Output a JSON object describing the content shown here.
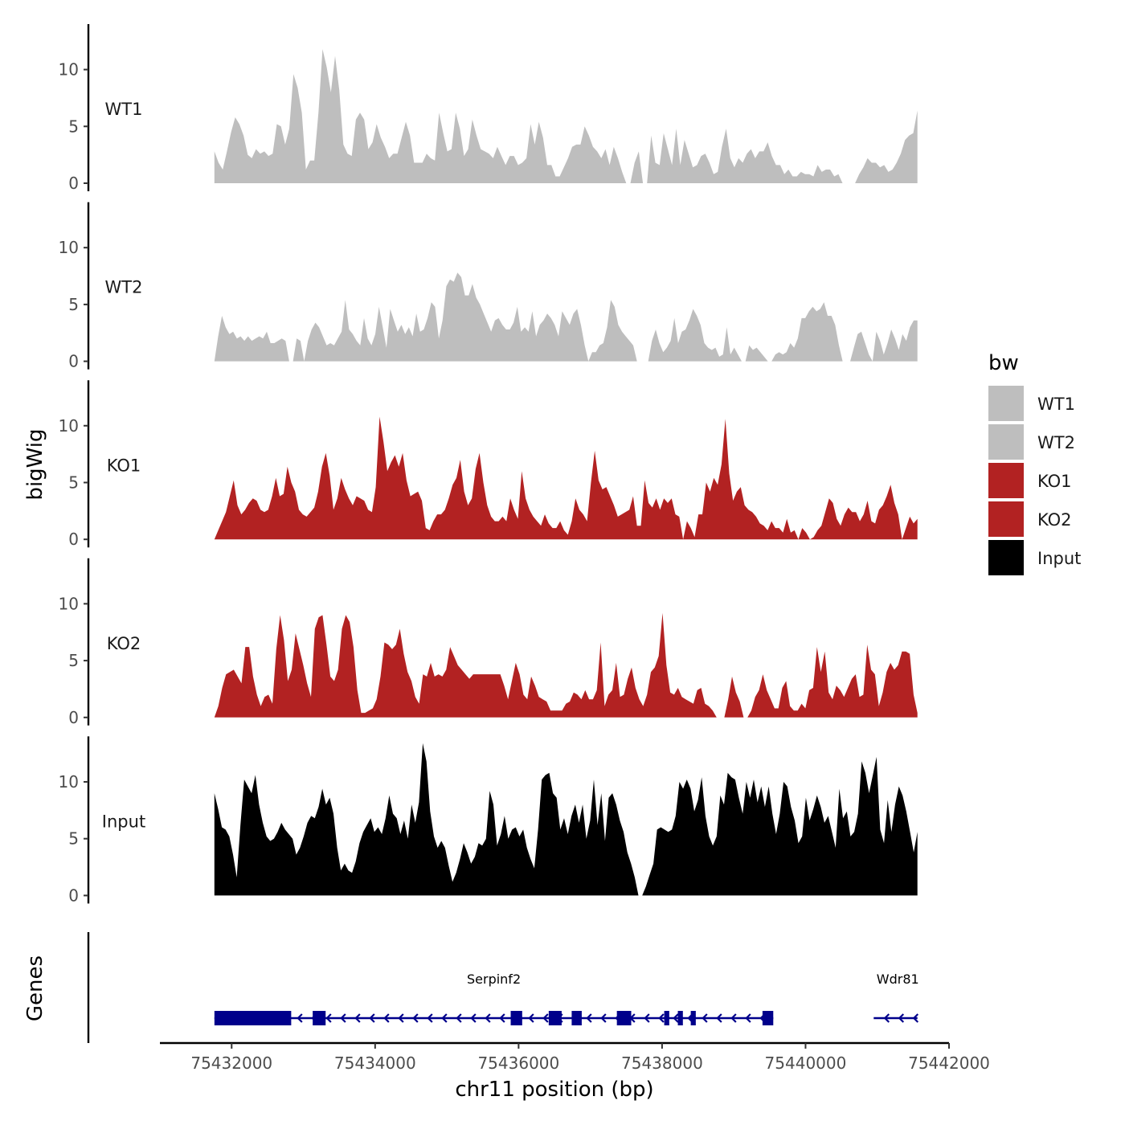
{
  "chart_data": {
    "type": "area",
    "layout": "stacked genome-browser tracks",
    "ylabel": "bigWig",
    "xlabel": "chr11 position (bp)",
    "genes_panel_label": "Genes",
    "xlim": [
      75431000,
      75442000
    ],
    "data_range": [
      75431760,
      75441560
    ],
    "x_ticks": [
      75432000,
      75434000,
      75436000,
      75438000,
      75440000,
      75442000
    ],
    "x_tick_labels": [
      "75432000",
      "75434000",
      "75436000",
      "75438000",
      "75440000",
      "75442000"
    ],
    "ylim": [
      0,
      14
    ],
    "y_ticks": [
      0,
      5,
      10
    ],
    "y_tick_labels": [
      "0",
      "5",
      "10"
    ],
    "legend": {
      "title": "bw",
      "entries": [
        {
          "label": "WT1",
          "color": "#bebebe"
        },
        {
          "label": "WT2",
          "color": "#bebebe"
        },
        {
          "label": "KO1",
          "color": "#b22222"
        },
        {
          "label": "KO2",
          "color": "#b22222"
        },
        {
          "label": "Input",
          "color": "#000000"
        }
      ]
    },
    "series": [
      {
        "name": "WT1",
        "color": "#bebebe",
        "values": [
          2.8,
          1.8,
          1.2,
          2.8,
          4.5,
          5.8,
          5.2,
          4.2,
          2.5,
          2.2,
          3.0,
          2.6,
          2.8,
          2.4,
          2.6,
          5.2,
          5.0,
          3.4,
          4.8,
          9.6,
          8.4,
          6.2,
          1.2,
          2.0,
          2.0,
          6.2,
          11.8,
          10.2,
          8.0,
          11.2,
          8.2,
          3.4,
          2.6,
          2.4,
          5.6,
          6.2,
          5.6,
          3.0,
          3.6,
          5.2,
          4.0,
          3.2,
          2.2,
          2.6,
          2.6,
          4.0,
          5.4,
          4.2,
          1.8,
          1.8,
          1.8,
          2.6,
          2.2,
          2.0,
          6.2,
          4.4,
          2.8,
          3.0,
          6.2,
          4.8,
          2.4,
          3.0,
          5.6,
          4.2,
          3.0,
          2.8,
          2.6,
          2.2,
          3.2,
          2.4,
          1.6,
          2.4,
          2.4,
          1.6,
          1.8,
          2.2,
          5.2,
          3.4,
          5.4,
          4.0,
          1.6,
          1.6,
          0.6,
          0.6,
          1.4,
          2.2,
          3.2,
          3.4,
          3.4,
          5.0,
          4.2,
          3.2,
          2.8,
          2.2,
          3.0,
          1.6,
          3.2,
          2.2,
          1.0,
          0.0,
          0.0,
          1.8,
          2.8,
          0.0,
          0.0,
          4.2,
          1.8,
          1.6,
          4.4,
          3.0,
          1.6,
          4.8,
          1.6,
          3.8,
          2.6,
          1.4,
          1.6,
          2.4,
          2.6,
          1.8,
          0.8,
          1.0,
          3.2,
          4.8,
          2.2,
          1.4,
          2.2,
          1.8,
          2.6,
          3.0,
          2.2,
          2.8,
          2.8,
          3.6,
          2.4,
          1.6,
          1.6,
          0.8,
          1.2,
          0.6,
          0.6,
          1.0,
          0.8,
          0.8,
          0.6,
          1.6,
          1.0,
          1.2,
          1.2,
          0.6,
          0.8,
          0.0,
          0.0,
          0.0,
          0.0,
          0.8,
          1.4,
          2.2,
          1.8,
          1.8,
          1.4,
          1.6,
          1.0,
          1.2,
          1.8,
          2.6,
          3.8,
          4.2,
          4.4,
          6.4
        ]
      },
      {
        "name": "WT2",
        "color": "#bebebe",
        "values": [
          0.0,
          2.2,
          4.0,
          3.0,
          2.4,
          2.6,
          2.0,
          2.2,
          1.8,
          2.2,
          1.8,
          2.0,
          2.2,
          2.0,
          2.6,
          1.6,
          1.6,
          1.8,
          2.0,
          1.8,
          0.0,
          0.0,
          2.0,
          1.8,
          0.0,
          1.8,
          2.8,
          3.4,
          3.0,
          2.2,
          1.4,
          1.6,
          1.4,
          2.0,
          2.6,
          5.4,
          2.8,
          2.4,
          1.8,
          1.4,
          3.8,
          2.0,
          1.4,
          2.4,
          4.8,
          3.0,
          1.2,
          4.6,
          3.6,
          2.6,
          3.2,
          2.4,
          3.0,
          2.2,
          4.2,
          2.6,
          2.8,
          3.8,
          5.2,
          4.8,
          2.0,
          3.6,
          6.6,
          7.2,
          7.0,
          7.8,
          7.4,
          5.8,
          5.8,
          6.8,
          5.6,
          5.0,
          4.2,
          3.4,
          2.6,
          3.6,
          3.8,
          3.2,
          2.8,
          2.8,
          3.4,
          4.8,
          2.6,
          3.0,
          2.6,
          4.4,
          2.2,
          3.2,
          3.6,
          4.2,
          3.8,
          3.2,
          2.2,
          4.4,
          3.8,
          3.2,
          4.2,
          4.6,
          3.2,
          1.4,
          0.0,
          0.8,
          0.8,
          1.4,
          1.6,
          3.0,
          5.4,
          4.8,
          3.2,
          2.6,
          2.2,
          1.8,
          1.4,
          0.0,
          0.0,
          0.0,
          0.0,
          1.8,
          2.8,
          1.6,
          0.8,
          1.2,
          1.8,
          3.8,
          1.6,
          2.6,
          2.8,
          3.6,
          4.6,
          4.0,
          3.2,
          1.6,
          1.2,
          1.0,
          1.2,
          0.4,
          0.6,
          3.0,
          0.6,
          1.2,
          0.6,
          0.0,
          0.0,
          1.4,
          1.0,
          1.2,
          0.8,
          0.4,
          0.0,
          0.0,
          0.6,
          0.8,
          0.6,
          0.8,
          1.6,
          1.2,
          2.0,
          3.8,
          3.8,
          4.4,
          4.8,
          4.4,
          4.6,
          5.2,
          4.0,
          4.0,
          3.2,
          1.4,
          0.0,
          0.0,
          0.0,
          1.2,
          2.4,
          2.6,
          1.6,
          0.6,
          0.0,
          2.6,
          1.8,
          0.6,
          1.6,
          2.8,
          2.0,
          1.0,
          2.4,
          1.8,
          3.0,
          3.6,
          3.6
        ]
      },
      {
        "name": "KO1",
        "color": "#b22222",
        "values": [
          0.0,
          0.8,
          1.6,
          2.4,
          3.8,
          5.2,
          3.0,
          2.2,
          2.6,
          3.2,
          3.6,
          3.4,
          2.6,
          2.4,
          2.6,
          3.8,
          5.4,
          3.8,
          4.0,
          6.4,
          5.0,
          4.2,
          2.6,
          2.2,
          2.0,
          2.4,
          2.8,
          4.2,
          6.4,
          7.6,
          5.6,
          2.6,
          3.6,
          5.4,
          4.4,
          3.6,
          3.0,
          3.8,
          3.6,
          3.4,
          2.6,
          2.4,
          4.6,
          10.8,
          8.6,
          6.0,
          6.8,
          7.4,
          6.4,
          7.6,
          5.2,
          3.8,
          4.0,
          4.2,
          3.4,
          1.0,
          0.8,
          1.6,
          2.2,
          2.2,
          2.6,
          3.6,
          4.8,
          5.4,
          7.0,
          4.2,
          3.0,
          3.6,
          6.2,
          7.6,
          5.0,
          3.0,
          2.0,
          1.6,
          1.6,
          2.0,
          1.6,
          3.6,
          2.6,
          1.8,
          6.0,
          3.6,
          2.6,
          2.0,
          1.6,
          1.2,
          2.2,
          1.4,
          1.0,
          1.0,
          1.6,
          0.8,
          0.4,
          1.6,
          3.6,
          2.6,
          2.2,
          1.6,
          5.0,
          7.8,
          5.2,
          4.4,
          4.6,
          3.8,
          3.0,
          2.0,
          2.2,
          2.4,
          2.6,
          3.8,
          1.2,
          1.2,
          5.2,
          3.2,
          2.8,
          3.6,
          2.6,
          3.6,
          3.2,
          3.6,
          2.2,
          2.0,
          0.0,
          1.6,
          1.0,
          0.2,
          2.2,
          2.2,
          5.0,
          4.2,
          5.4,
          4.8,
          6.6,
          10.6,
          5.8,
          3.4,
          4.2,
          4.6,
          3.0,
          2.6,
          2.4,
          2.0,
          1.4,
          1.2,
          0.8,
          1.6,
          1.0,
          1.0,
          0.6,
          1.8,
          0.6,
          0.8,
          0.0,
          1.0,
          0.6,
          0.0,
          0.2,
          0.8,
          1.2,
          2.4,
          3.6,
          3.2,
          1.8,
          1.2,
          2.2,
          2.8,
          2.4,
          2.4,
          1.6,
          2.2,
          3.4,
          1.6,
          1.4,
          2.6,
          3.0,
          3.8,
          4.8,
          3.2,
          2.2,
          0.0,
          1.0,
          2.0,
          1.4,
          1.8
        ]
      },
      {
        "name": "KO2",
        "color": "#b22222",
        "values": [
          0.0,
          1.0,
          2.6,
          3.8,
          4.0,
          4.2,
          3.6,
          3.0,
          6.2,
          6.2,
          3.6,
          2.0,
          1.0,
          1.8,
          2.0,
          1.2,
          6.0,
          9.0,
          6.8,
          3.2,
          4.2,
          7.4,
          6.0,
          4.6,
          3.0,
          1.8,
          7.8,
          8.8,
          9.0,
          6.4,
          3.6,
          3.2,
          4.2,
          7.8,
          9.0,
          8.4,
          6.2,
          2.4,
          0.4,
          0.4,
          0.6,
          0.8,
          1.6,
          3.6,
          6.6,
          6.4,
          6.0,
          6.4,
          7.8,
          5.6,
          4.0,
          3.2,
          1.8,
          1.2,
          3.8,
          3.6,
          4.8,
          3.6,
          3.8,
          3.6,
          4.2,
          6.2,
          5.4,
          4.6,
          4.2,
          3.8,
          3.4,
          3.8,
          3.8,
          3.8,
          3.8,
          3.8,
          3.8,
          3.8,
          3.8,
          2.8,
          1.6,
          3.2,
          4.8,
          3.8,
          2.0,
          1.6,
          3.6,
          2.8,
          1.8,
          1.6,
          1.4,
          0.6,
          0.6,
          0.6,
          0.6,
          1.2,
          1.4,
          2.2,
          2.0,
          1.6,
          2.4,
          1.6,
          1.6,
          2.4,
          6.6,
          1.0,
          2.0,
          2.4,
          4.8,
          1.8,
          2.0,
          3.4,
          4.4,
          2.6,
          1.6,
          1.0,
          2.0,
          4.0,
          4.4,
          5.4,
          9.2,
          4.6,
          2.2,
          2.0,
          2.6,
          1.8,
          1.6,
          1.4,
          1.2,
          2.4,
          2.6,
          1.2,
          1.0,
          0.6,
          0.0,
          0.0,
          0.0,
          1.6,
          3.6,
          2.2,
          1.4,
          0.0,
          0.0,
          0.6,
          1.8,
          2.4,
          3.8,
          2.4,
          1.6,
          0.8,
          0.8,
          2.6,
          3.2,
          1.0,
          0.6,
          0.6,
          1.2,
          0.8,
          2.4,
          2.6,
          6.2,
          4.0,
          5.8,
          2.2,
          1.6,
          2.8,
          2.4,
          1.8,
          2.6,
          3.4,
          3.8,
          1.8,
          2.0,
          6.4,
          4.2,
          3.8,
          1.0,
          2.2,
          4.0,
          4.8,
          4.2,
          4.6,
          5.8,
          5.8,
          5.6,
          2.0,
          0.4
        ]
      },
      {
        "name": "Input",
        "color": "#000000",
        "values": [
          9.0,
          7.6,
          6.0,
          5.8,
          5.2,
          3.6,
          1.6,
          6.2,
          10.2,
          9.6,
          9.0,
          10.6,
          8.0,
          6.4,
          5.2,
          4.8,
          5.0,
          5.6,
          6.4,
          5.8,
          5.4,
          5.0,
          3.6,
          4.2,
          5.2,
          6.4,
          7.0,
          6.8,
          7.8,
          9.4,
          8.0,
          8.6,
          7.2,
          4.2,
          2.2,
          2.8,
          2.2,
          2.0,
          3.0,
          4.6,
          5.6,
          6.2,
          6.8,
          5.6,
          6.0,
          5.4,
          6.8,
          8.8,
          7.2,
          6.8,
          5.4,
          6.6,
          5.0,
          8.0,
          6.4,
          8.2,
          13.4,
          11.8,
          7.4,
          5.2,
          4.2,
          4.8,
          4.2,
          2.6,
          1.2,
          2.0,
          3.2,
          4.6,
          3.8,
          2.8,
          3.4,
          4.6,
          4.4,
          5.0,
          9.2,
          8.0,
          4.4,
          5.4,
          7.0,
          5.0,
          5.8,
          6.0,
          5.2,
          5.8,
          4.2,
          3.2,
          2.4,
          5.8,
          10.2,
          10.6,
          10.8,
          9.0,
          8.6,
          5.8,
          6.8,
          5.4,
          7.0,
          8.0,
          6.4,
          8.0,
          5.0,
          6.6,
          10.2,
          6.2,
          9.0,
          4.8,
          8.6,
          9.0,
          8.0,
          6.6,
          5.6,
          3.8,
          2.8,
          1.6,
          0.0,
          0.0,
          0.8,
          1.8,
          2.8,
          5.8,
          6.0,
          5.8,
          5.6,
          5.8,
          7.0,
          10.0,
          9.4,
          10.2,
          9.4,
          7.4,
          8.4,
          10.4,
          7.0,
          5.2,
          4.4,
          5.2,
          8.8,
          8.0,
          10.8,
          10.4,
          10.2,
          8.6,
          7.2,
          10.0,
          8.6,
          10.2,
          8.2,
          9.6,
          7.8,
          9.6,
          7.2,
          5.4,
          7.2,
          10.0,
          9.6,
          7.8,
          6.6,
          4.6,
          5.2,
          8.6,
          6.6,
          7.6,
          8.8,
          7.8,
          6.4,
          7.0,
          5.6,
          4.2,
          9.4,
          6.8,
          7.4,
          5.2,
          5.6,
          7.2,
          11.8,
          10.8,
          9.0,
          10.6,
          12.2,
          5.8,
          4.6,
          8.4,
          5.6,
          8.0,
          9.6,
          8.8,
          7.4,
          5.6,
          3.8,
          5.6
        ]
      }
    ],
    "genes": [
      {
        "name": "Serpinf2",
        "strand": "-",
        "start": 75431760,
        "end": 75439550,
        "exons": [
          [
            75431760,
            75432830
          ],
          [
            75433130,
            75433310
          ],
          [
            75435890,
            75436050
          ],
          [
            75436420,
            75436600
          ],
          [
            75436740,
            75436880
          ],
          [
            75437370,
            75437570
          ],
          [
            75438030,
            75438100
          ],
          [
            75438220,
            75438290
          ],
          [
            75438400,
            75438470
          ],
          [
            75439400,
            75439550
          ]
        ]
      },
      {
        "name": "Wdr81",
        "strand": "-",
        "start": 75440950,
        "end": 75441560,
        "exons": []
      }
    ]
  }
}
